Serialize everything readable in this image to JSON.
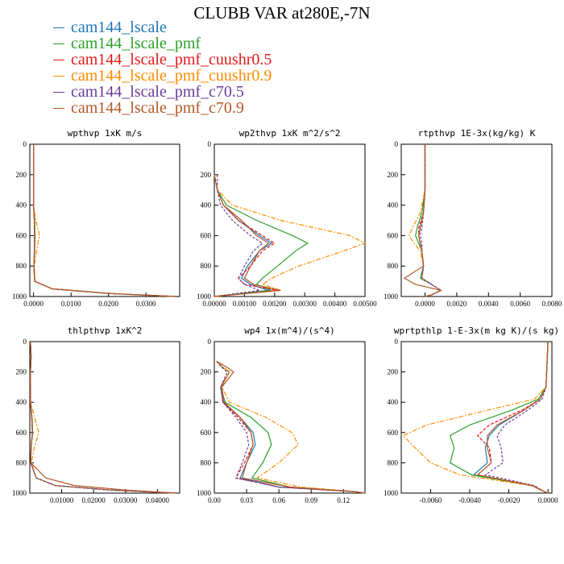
{
  "title": "CLUBB VAR at280E,-7N",
  "legend": [
    {
      "label": "cam144_lscale",
      "color": "#1f78b4"
    },
    {
      "label": "cam144_lscale_pmf",
      "color": "#2ca02c"
    },
    {
      "label": "cam144_lscale_pmf_cuushr0.5",
      "color": "#e31a1c"
    },
    {
      "label": "cam144_lscale_pmf_cuushr0.9",
      "color": "#ff8c00"
    },
    {
      "label": "cam144_lscale_pmf_c70.5",
      "color": "#6a3d9a"
    },
    {
      "label": "cam144_lscale_pmf_c70.9",
      "color": "#b15928"
    }
  ],
  "chart_data": [
    {
      "type": "line",
      "title": "wpthvp   1xK m/s",
      "xlim": [
        -0.001,
        0.039
      ],
      "ylim": [
        1000,
        0
      ],
      "xticks": [
        0,
        0.01,
        0.02,
        0.03
      ],
      "xtick_labels": [
        "0.0000",
        "0.0100",
        "0.0200",
        "0.0300"
      ],
      "yticks": [
        0,
        200,
        400,
        600,
        800,
        1000
      ],
      "y": [
        0,
        200,
        400,
        500,
        600,
        700,
        800,
        900,
        950,
        980,
        1000
      ],
      "series": [
        {
          "name": "cam144_lscale",
          "values": [
            0,
            0,
            0,
            0.0002,
            0.0003,
            0.0002,
            0.0001,
            0.0003,
            0.005,
            0.02,
            0.038
          ]
        },
        {
          "name": "cam144_lscale_pmf",
          "values": [
            0,
            0,
            0,
            0.0003,
            0.0004,
            0.0003,
            0.0001,
            0.0003,
            0.005,
            0.02,
            0.038
          ]
        },
        {
          "name": "cam144_lscale_pmf_cuushr0.5",
          "values": [
            0,
            0,
            0,
            0.0002,
            0.0003,
            0.0002,
            0.0001,
            0.0003,
            0.005,
            0.02,
            0.038
          ]
        },
        {
          "name": "cam144_lscale_pmf_cuushr0.9",
          "values": [
            0,
            0,
            0,
            0.0006,
            0.0016,
            0.0008,
            0.0002,
            0.0004,
            0.005,
            0.02,
            0.038
          ]
        },
        {
          "name": "cam144_lscale_pmf_c70.5",
          "values": [
            0,
            0,
            0,
            0.0002,
            0.0003,
            0.0002,
            0.0001,
            0.0003,
            0.005,
            0.02,
            0.038
          ]
        },
        {
          "name": "cam144_lscale_pmf_c70.9",
          "values": [
            0,
            0,
            0,
            0.0002,
            0.0003,
            0.0002,
            0.0001,
            0.0003,
            0.005,
            0.02,
            0.038
          ]
        }
      ]
    },
    {
      "type": "line",
      "title": "wp2thvp   1xK m^2/s^2",
      "xlim": [
        0,
        0.005
      ],
      "ylim": [
        1000,
        0
      ],
      "xticks": [
        0,
        0.001,
        0.002,
        0.003,
        0.004,
        0.005
      ],
      "xtick_labels": [
        "0.00000",
        "0.00100",
        "0.00200",
        "0.00300",
        "0.00400",
        "0.00500"
      ],
      "yticks": [
        0,
        200,
        400,
        600,
        800,
        1000
      ],
      "y": [
        200,
        300,
        400,
        500,
        600,
        650,
        700,
        800,
        880,
        920,
        960,
        1000
      ],
      "series": [
        {
          "name": "cam144_lscale",
          "values": [
            0,
            0.0001,
            0.0003,
            0.0008,
            0.0015,
            0.0019,
            0.0015,
            0.0011,
            0.0009,
            0.0012,
            0.0018,
            0
          ]
        },
        {
          "name": "cam144_lscale_pmf",
          "values": [
            0,
            0.0001,
            0.0004,
            0.0014,
            0.0026,
            0.0031,
            0.0027,
            0.0021,
            0.0016,
            0.0014,
            0.0019,
            0
          ]
        },
        {
          "name": "cam144_lscale_pmf_cuushr0.5",
          "values": [
            0,
            0.0001,
            0.0003,
            0.0008,
            0.0016,
            0.002,
            0.0016,
            0.0012,
            0.0008,
            0.001,
            0.0021,
            0
          ]
        },
        {
          "name": "cam144_lscale_pmf_cuushr0.9",
          "values": [
            0,
            0.0001,
            0.0006,
            0.0022,
            0.0045,
            0.005,
            0.0043,
            0.0028,
            0.0019,
            0.0016,
            0.0022,
            0
          ]
        },
        {
          "name": "cam144_lscale_pmf_c70.5",
          "values": [
            0.0001,
            0.0001,
            0.0002,
            0.0006,
            0.0012,
            0.0016,
            0.0013,
            0.001,
            0.0008,
            0.001,
            0.0015,
            0
          ]
        },
        {
          "name": "cam144_lscale_pmf_c70.9",
          "values": [
            0,
            0.0001,
            0.0003,
            0.0009,
            0.0014,
            0.0018,
            0.0015,
            0.0012,
            0.001,
            0.0013,
            0.0022,
            0
          ]
        }
      ]
    },
    {
      "type": "line",
      "title": "rtpthvp   1E-3x(kg/kg) K",
      "xlim": [
        -0.0015,
        0.008
      ],
      "ylim": [
        1000,
        0
      ],
      "xticks": [
        0,
        0.002,
        0.004,
        0.006,
        0.008
      ],
      "xtick_labels": [
        "0.0000",
        "0.0020",
        "0.0040",
        "0.0060",
        "0.0080"
      ],
      "yticks": [
        0,
        200,
        400,
        600,
        800,
        1000
      ],
      "y": [
        0,
        300,
        450,
        550,
        600,
        650,
        700,
        800,
        880,
        920,
        960,
        990,
        1000
      ],
      "series": [
        {
          "name": "cam144_lscale",
          "values": [
            0,
            0,
            -0.0001,
            -0.0003,
            -0.0004,
            -0.0003,
            -0.0002,
            -0.0001,
            -0.0002,
            0.0004,
            0.001,
            0.0004,
            0
          ]
        },
        {
          "name": "cam144_lscale_pmf",
          "values": [
            0,
            0,
            -0.0002,
            -0.0005,
            -0.0006,
            -0.0004,
            -0.0002,
            -0.0001,
            -0.0003,
            0.0004,
            0.001,
            0.0004,
            0
          ]
        },
        {
          "name": "cam144_lscale_pmf_cuushr0.5",
          "values": [
            0,
            0,
            -0.0001,
            -0.0004,
            -0.0004,
            -0.0003,
            -0.0002,
            -0.0001,
            -0.0002,
            0.0004,
            0.001,
            0.0004,
            0
          ]
        },
        {
          "name": "cam144_lscale_pmf_cuushr0.9",
          "values": [
            0,
            0,
            -0.0003,
            -0.0008,
            -0.001,
            -0.0007,
            -0.0003,
            -0.0001,
            -0.0002,
            0.0004,
            0.001,
            0.0004,
            0
          ]
        },
        {
          "name": "cam144_lscale_pmf_c70.5",
          "values": [
            0,
            0,
            -0.0001,
            -0.0002,
            -0.0003,
            -0.0002,
            -0.0002,
            -0.0001,
            -0.0002,
            0.0004,
            0.001,
            0.0004,
            0
          ]
        },
        {
          "name": "cam144_lscale_pmf_c70.9",
          "values": [
            0,
            0,
            -0.0001,
            -0.0003,
            -0.0004,
            -0.0003,
            -0.0002,
            -0.0001,
            -0.0013,
            -0.0006,
            0.001,
            0.0004,
            0
          ]
        }
      ]
    },
    {
      "type": "line",
      "title": "thlpthvp   1xK^2",
      "xlim": [
        0,
        0.047
      ],
      "ylim": [
        1000,
        0
      ],
      "xticks": [
        0.01,
        0.02,
        0.03,
        0.04
      ],
      "xtick_labels": [
        "0.01000",
        "0.02000",
        "0.03000",
        "0.04000"
      ],
      "yticks": [
        0,
        200,
        400,
        600,
        800,
        1000
      ],
      "y": [
        0,
        100,
        200,
        400,
        500,
        600,
        700,
        800,
        900,
        950,
        980,
        1000
      ],
      "series": [
        {
          "name": "cam144_lscale",
          "values": [
            0.0002,
            0.0004,
            0.0002,
            0.0002,
            0.0006,
            0.0008,
            0.0004,
            0.0003,
            0.002,
            0.008,
            0.025,
            0.046
          ]
        },
        {
          "name": "cam144_lscale_pmf",
          "values": [
            0.0002,
            0.0004,
            0.0002,
            0.0002,
            0.0007,
            0.0009,
            0.0004,
            0.0003,
            0.002,
            0.008,
            0.025,
            0.046
          ]
        },
        {
          "name": "cam144_lscale_pmf_cuushr0.5",
          "values": [
            0.0002,
            0.0004,
            0.0002,
            0.0002,
            0.0006,
            0.0008,
            0.0004,
            0.0003,
            0.002,
            0.008,
            0.025,
            0.046
          ]
        },
        {
          "name": "cam144_lscale_pmf_cuushr0.9",
          "values": [
            0.0002,
            0.0004,
            0.0002,
            0.0003,
            0.0015,
            0.0028,
            0.0014,
            0.0005,
            0.002,
            0.008,
            0.025,
            0.046
          ]
        },
        {
          "name": "cam144_lscale_pmf_c70.5",
          "values": [
            0.0002,
            0.0004,
            0.0002,
            0.0002,
            0.0006,
            0.0008,
            0.0004,
            0.0003,
            0.002,
            0.008,
            0.025,
            0.046
          ]
        },
        {
          "name": "cam144_lscale_pmf_c70.9",
          "values": [
            0.0002,
            0.0004,
            0.0002,
            0.0002,
            0.0006,
            0.0008,
            0.0004,
            0.0003,
            0.005,
            0.014,
            0.03,
            0.046
          ]
        }
      ]
    },
    {
      "type": "line",
      "title": "wp4   1x(m^4)/(s^4)",
      "xlim": [
        0,
        0.14
      ],
      "ylim": [
        1000,
        0
      ],
      "xticks": [
        0,
        0.03,
        0.06,
        0.09,
        0.12
      ],
      "xtick_labels": [
        "0.00",
        "0.03",
        "0.06",
        "0.09",
        "0.12"
      ],
      "yticks": [
        0,
        200,
        400,
        600,
        800,
        1000
      ],
      "y": [
        130,
        170,
        200,
        300,
        400,
        500,
        600,
        680,
        800,
        900,
        960,
        990,
        1000
      ],
      "series": [
        {
          "name": "cam144_lscale",
          "values": [
            0.002,
            0.008,
            0.014,
            0.006,
            0.008,
            0.024,
            0.036,
            0.038,
            0.03,
            0.024,
            0.06,
            0.13,
            0.14
          ]
        },
        {
          "name": "cam144_lscale_pmf",
          "values": [
            0.002,
            0.008,
            0.014,
            0.006,
            0.01,
            0.034,
            0.05,
            0.053,
            0.045,
            0.035,
            0.07,
            0.13,
            0.14
          ]
        },
        {
          "name": "cam144_lscale_pmf_cuushr0.5",
          "values": [
            0.002,
            0.008,
            0.014,
            0.006,
            0.008,
            0.022,
            0.034,
            0.036,
            0.028,
            0.02,
            0.06,
            0.13,
            0.14
          ]
        },
        {
          "name": "cam144_lscale_pmf_cuushr0.9",
          "values": [
            0.002,
            0.008,
            0.014,
            0.007,
            0.014,
            0.048,
            0.072,
            0.078,
            0.06,
            0.04,
            0.08,
            0.13,
            0.14
          ]
        },
        {
          "name": "cam144_lscale_pmf_c70.5",
          "values": [
            0.002,
            0.007,
            0.012,
            0.006,
            0.008,
            0.02,
            0.03,
            0.032,
            0.026,
            0.02,
            0.06,
            0.13,
            0.14
          ]
        },
        {
          "name": "cam144_lscale_pmf_c70.9",
          "values": [
            0.002,
            0.012,
            0.018,
            0.007,
            0.009,
            0.024,
            0.034,
            0.036,
            0.03,
            0.026,
            0.07,
            0.13,
            0.14
          ]
        }
      ]
    },
    {
      "type": "line",
      "title": "wprtpthlp   1-E-3x(m kg K)/(s kg)",
      "xlim": [
        -0.0075,
        0.0002
      ],
      "ylim": [
        1000,
        0
      ],
      "xticks": [
        -0.006,
        -0.004,
        -0.002,
        0
      ],
      "xtick_labels": [
        "-0.0060",
        "-0.0040",
        "-0.0020",
        "0.0000"
      ],
      "yticks": [
        0,
        200,
        400,
        600,
        800,
        1000
      ],
      "y": [
        0,
        300,
        380,
        450,
        550,
        620,
        700,
        800,
        880,
        950,
        990,
        1000
      ],
      "series": [
        {
          "name": "cam144_lscale",
          "values": [
            0,
            -0.0001,
            -0.0004,
            -0.0012,
            -0.0025,
            -0.003,
            -0.0032,
            -0.0031,
            -0.0038,
            -0.0008,
            -0.0002,
            0
          ]
        },
        {
          "name": "cam144_lscale_pmf",
          "values": [
            0,
            -0.0001,
            -0.0005,
            -0.0018,
            -0.004,
            -0.005,
            -0.0048,
            -0.005,
            -0.0039,
            -0.0008,
            -0.0002,
            0
          ]
        },
        {
          "name": "cam144_lscale_pmf_cuushr0.5",
          "values": [
            0,
            -0.0001,
            -0.0004,
            -0.0013,
            -0.003,
            -0.0036,
            -0.003,
            -0.0029,
            -0.0036,
            -0.0008,
            -0.0002,
            0
          ]
        },
        {
          "name": "cam144_lscale_pmf_cuushr0.9",
          "values": [
            0,
            -0.0001,
            -0.0007,
            -0.003,
            -0.0062,
            -0.0074,
            -0.0068,
            -0.006,
            -0.0045,
            -0.0009,
            -0.0002,
            0
          ]
        },
        {
          "name": "cam144_lscale_pmf_c70.5",
          "values": [
            0,
            -0.0001,
            -0.0003,
            -0.001,
            -0.0022,
            -0.0026,
            -0.0024,
            -0.0023,
            -0.0032,
            -0.0007,
            -0.0002,
            0
          ]
        },
        {
          "name": "cam144_lscale_pmf_c70.9",
          "values": [
            0,
            -0.0001,
            -0.0004,
            -0.0012,
            -0.0026,
            -0.0031,
            -0.0031,
            -0.0029,
            -0.0036,
            -0.0008,
            -0.0002,
            0
          ]
        }
      ]
    }
  ]
}
